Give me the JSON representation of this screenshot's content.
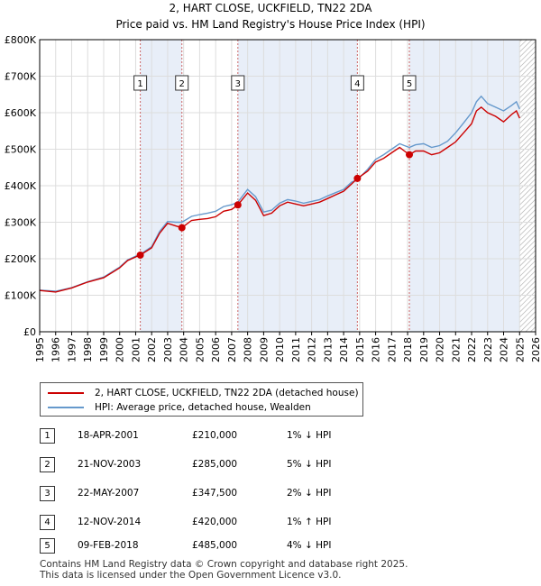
{
  "chart_data": {
    "type": "line",
    "title": "2, HART CLOSE, UCKFIELD, TN22 2DA",
    "subtitle": "Price paid vs. HM Land Registry's House Price Index (HPI)",
    "xlabel": "",
    "ylabel": "",
    "xlim": [
      1995,
      2026
    ],
    "ylim": [
      0,
      800000
    ],
    "x_ticks": [
      "1995",
      "1996",
      "1997",
      "1998",
      "1999",
      "2000",
      "2001",
      "2002",
      "2003",
      "2004",
      "2005",
      "2006",
      "2007",
      "2008",
      "2009",
      "2010",
      "2011",
      "2012",
      "2013",
      "2014",
      "2015",
      "2016",
      "2017",
      "2018",
      "2019",
      "2020",
      "2021",
      "2022",
      "2023",
      "2024",
      "2025",
      "2026"
    ],
    "y_ticks": [
      "£0",
      "£100K",
      "£200K",
      "£300K",
      "£400K",
      "£500K",
      "£600K",
      "£700K",
      "£800K"
    ],
    "y_tick_values": [
      0,
      100000,
      200000,
      300000,
      400000,
      500000,
      600000,
      700000,
      800000
    ],
    "grid": true,
    "colors": {
      "property": "#cc0000",
      "hpi": "#6699cc",
      "shade": "#e8eef8",
      "vline": "#cc6666",
      "future_hatch": "#aaaaaa"
    },
    "series": [
      {
        "name": "2, HART CLOSE, UCKFIELD, TN22 2DA (detached house)",
        "points": [
          [
            1995.0,
            113000
          ],
          [
            1996.0,
            109000
          ],
          [
            1997.0,
            120000
          ],
          [
            1998.0,
            136000
          ],
          [
            1999.0,
            148000
          ],
          [
            2000.0,
            175000
          ],
          [
            2000.5,
            195000
          ],
          [
            2001.0,
            205000
          ],
          [
            2001.29,
            210000
          ],
          [
            2002.0,
            230000
          ],
          [
            2002.5,
            270000
          ],
          [
            2003.0,
            297000
          ],
          [
            2003.5,
            290000
          ],
          [
            2003.89,
            285000
          ],
          [
            2004.5,
            305000
          ],
          [
            2005.0,
            308000
          ],
          [
            2005.5,
            310000
          ],
          [
            2006.0,
            315000
          ],
          [
            2006.5,
            330000
          ],
          [
            2007.0,
            335000
          ],
          [
            2007.39,
            347500
          ],
          [
            2008.0,
            380000
          ],
          [
            2008.5,
            360000
          ],
          [
            2009.0,
            318000
          ],
          [
            2009.5,
            325000
          ],
          [
            2010.0,
            345000
          ],
          [
            2010.5,
            355000
          ],
          [
            2011.0,
            350000
          ],
          [
            2011.5,
            345000
          ],
          [
            2012.0,
            350000
          ],
          [
            2012.5,
            355000
          ],
          [
            2013.0,
            365000
          ],
          [
            2013.5,
            375000
          ],
          [
            2014.0,
            385000
          ],
          [
            2014.5,
            405000
          ],
          [
            2014.86,
            420000
          ],
          [
            2015.5,
            440000
          ],
          [
            2016.0,
            465000
          ],
          [
            2016.5,
            475000
          ],
          [
            2017.0,
            490000
          ],
          [
            2017.5,
            505000
          ],
          [
            2017.8,
            495000
          ],
          [
            2018.11,
            485000
          ],
          [
            2018.5,
            495000
          ],
          [
            2019.0,
            495000
          ],
          [
            2019.5,
            485000
          ],
          [
            2020.0,
            490000
          ],
          [
            2020.5,
            505000
          ],
          [
            2021.0,
            520000
          ],
          [
            2021.5,
            545000
          ],
          [
            2022.0,
            570000
          ],
          [
            2022.3,
            605000
          ],
          [
            2022.6,
            615000
          ],
          [
            2023.0,
            600000
          ],
          [
            2023.5,
            590000
          ],
          [
            2024.0,
            575000
          ],
          [
            2024.5,
            595000
          ],
          [
            2024.8,
            605000
          ],
          [
            2025.0,
            585000
          ]
        ]
      },
      {
        "name": "HPI: Average price, detached house, Wealden",
        "points": [
          [
            1995.0,
            114000
          ],
          [
            1996.0,
            111000
          ],
          [
            1997.0,
            121000
          ],
          [
            1998.0,
            137000
          ],
          [
            1999.0,
            150000
          ],
          [
            2000.0,
            177000
          ],
          [
            2000.5,
            197000
          ],
          [
            2001.0,
            207000
          ],
          [
            2001.29,
            212000
          ],
          [
            2002.0,
            233000
          ],
          [
            2002.5,
            275000
          ],
          [
            2003.0,
            302000
          ],
          [
            2003.5,
            300000
          ],
          [
            2003.89,
            300000
          ],
          [
            2004.5,
            316000
          ],
          [
            2005.0,
            321000
          ],
          [
            2005.5,
            325000
          ],
          [
            2006.0,
            330000
          ],
          [
            2006.5,
            343000
          ],
          [
            2007.0,
            348000
          ],
          [
            2007.39,
            355000
          ],
          [
            2008.0,
            390000
          ],
          [
            2008.5,
            370000
          ],
          [
            2009.0,
            328000
          ],
          [
            2009.5,
            333000
          ],
          [
            2010.0,
            352000
          ],
          [
            2010.5,
            362000
          ],
          [
            2011.0,
            358000
          ],
          [
            2011.5,
            352000
          ],
          [
            2012.0,
            357000
          ],
          [
            2012.5,
            362000
          ],
          [
            2013.0,
            372000
          ],
          [
            2013.5,
            381000
          ],
          [
            2014.0,
            390000
          ],
          [
            2014.5,
            410000
          ],
          [
            2014.86,
            416000
          ],
          [
            2015.5,
            445000
          ],
          [
            2016.0,
            472000
          ],
          [
            2016.5,
            485000
          ],
          [
            2017.0,
            500000
          ],
          [
            2017.5,
            515000
          ],
          [
            2017.8,
            510000
          ],
          [
            2018.11,
            505000
          ],
          [
            2018.5,
            512000
          ],
          [
            2019.0,
            515000
          ],
          [
            2019.5,
            505000
          ],
          [
            2020.0,
            510000
          ],
          [
            2020.5,
            522000
          ],
          [
            2021.0,
            545000
          ],
          [
            2021.5,
            572000
          ],
          [
            2022.0,
            600000
          ],
          [
            2022.3,
            630000
          ],
          [
            2022.6,
            645000
          ],
          [
            2023.0,
            625000
          ],
          [
            2023.5,
            615000
          ],
          [
            2024.0,
            605000
          ],
          [
            2024.5,
            620000
          ],
          [
            2024.8,
            630000
          ],
          [
            2025.0,
            610000
          ]
        ]
      }
    ],
    "sales": [
      {
        "num": "1",
        "x": 2001.29,
        "y": 210000
      },
      {
        "num": "2",
        "x": 2003.89,
        "y": 285000
      },
      {
        "num": "3",
        "x": 2007.39,
        "y": 347500
      },
      {
        "num": "4",
        "x": 2014.86,
        "y": 420000
      },
      {
        "num": "5",
        "x": 2018.11,
        "y": 485000
      }
    ],
    "shaded_periods": [
      [
        2001.29,
        2003.89
      ],
      [
        2007.39,
        2014.86
      ],
      [
        2018.11,
        2025.0
      ]
    ],
    "future_start": 2025.0
  },
  "legend": {
    "property_label": "2, HART CLOSE, UCKFIELD, TN22 2DA (detached house)",
    "hpi_label": "HPI: Average price, detached house, Wealden"
  },
  "sales_table": [
    {
      "num": "1",
      "date": "18-APR-2001",
      "price": "£210,000",
      "hpi": "1% ↓ HPI"
    },
    {
      "num": "2",
      "date": "21-NOV-2003",
      "price": "£285,000",
      "hpi": "5% ↓ HPI"
    },
    {
      "num": "3",
      "date": "22-MAY-2007",
      "price": "£347,500",
      "hpi": "2% ↓ HPI"
    },
    {
      "num": "4",
      "date": "12-NOV-2014",
      "price": "£420,000",
      "hpi": "1% ↑ HPI"
    },
    {
      "num": "5",
      "date": "09-FEB-2018",
      "price": "£485,000",
      "hpi": "4% ↓ HPI"
    }
  ],
  "footer": {
    "line1": "Contains HM Land Registry data © Crown copyright and database right 2025.",
    "line2": "This data is licensed under the Open Government Licence v3.0."
  }
}
